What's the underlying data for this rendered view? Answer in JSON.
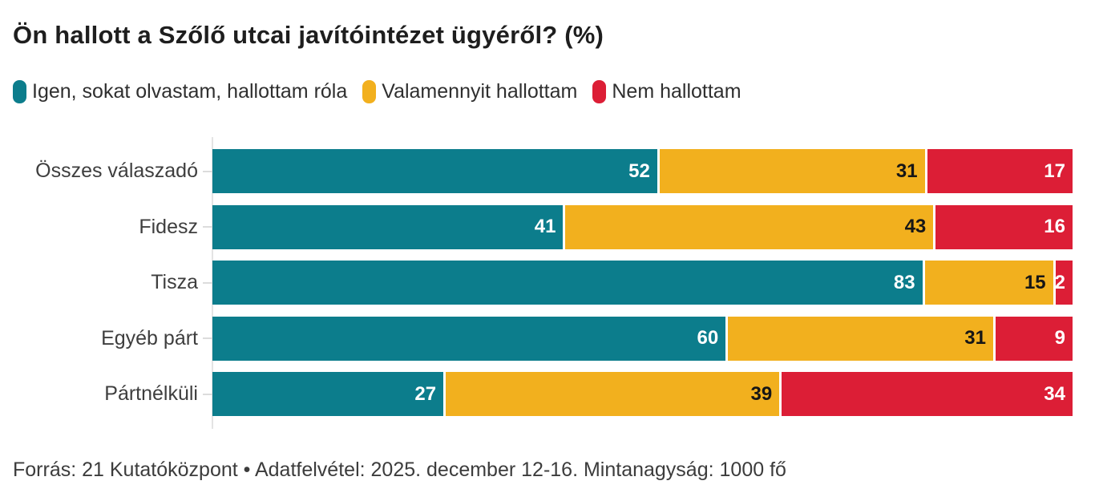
{
  "title": "Ön hallott a Szőlő utcai javítóintézet ügyéről? (%)",
  "footer": "Forrás: 21 Kutatóközpont • Adatfelvétel: 2025. december 12-16. Mintanagyság: 1000 fő",
  "colors": {
    "series_teal": "#0c7d8c",
    "series_yellow": "#f2b01e",
    "series_red": "#dc1e36",
    "axis": "#e4e4e4",
    "tick": "#dcdcdc"
  },
  "chart_data": {
    "type": "bar",
    "orientation": "horizontal",
    "stacked": true,
    "grid": false,
    "legend_position": "top",
    "xlim": [
      0,
      100
    ],
    "value_labels": true,
    "title": "Ön hallott a Szőlő utcai javítóintézet ügyéről? (%)",
    "categories": [
      "Összes válaszadó",
      "Fidesz",
      "Tisza",
      "Egyéb párt",
      "Pártnélküli"
    ],
    "series": [
      {
        "name": "Igen, sokat olvastam, hallottam róla",
        "color": "#0c7d8c",
        "label_color": "#ffffff",
        "values": [
          52,
          41,
          83,
          60,
          27
        ]
      },
      {
        "name": "Valamennyit hallottam",
        "color": "#f2b01e",
        "label_color": "#161616",
        "values": [
          31,
          43,
          15,
          31,
          39
        ]
      },
      {
        "name": "Nem hallottam",
        "color": "#dc1e36",
        "label_color": "#ffffff",
        "values": [
          17,
          16,
          2,
          9,
          34
        ]
      }
    ]
  }
}
